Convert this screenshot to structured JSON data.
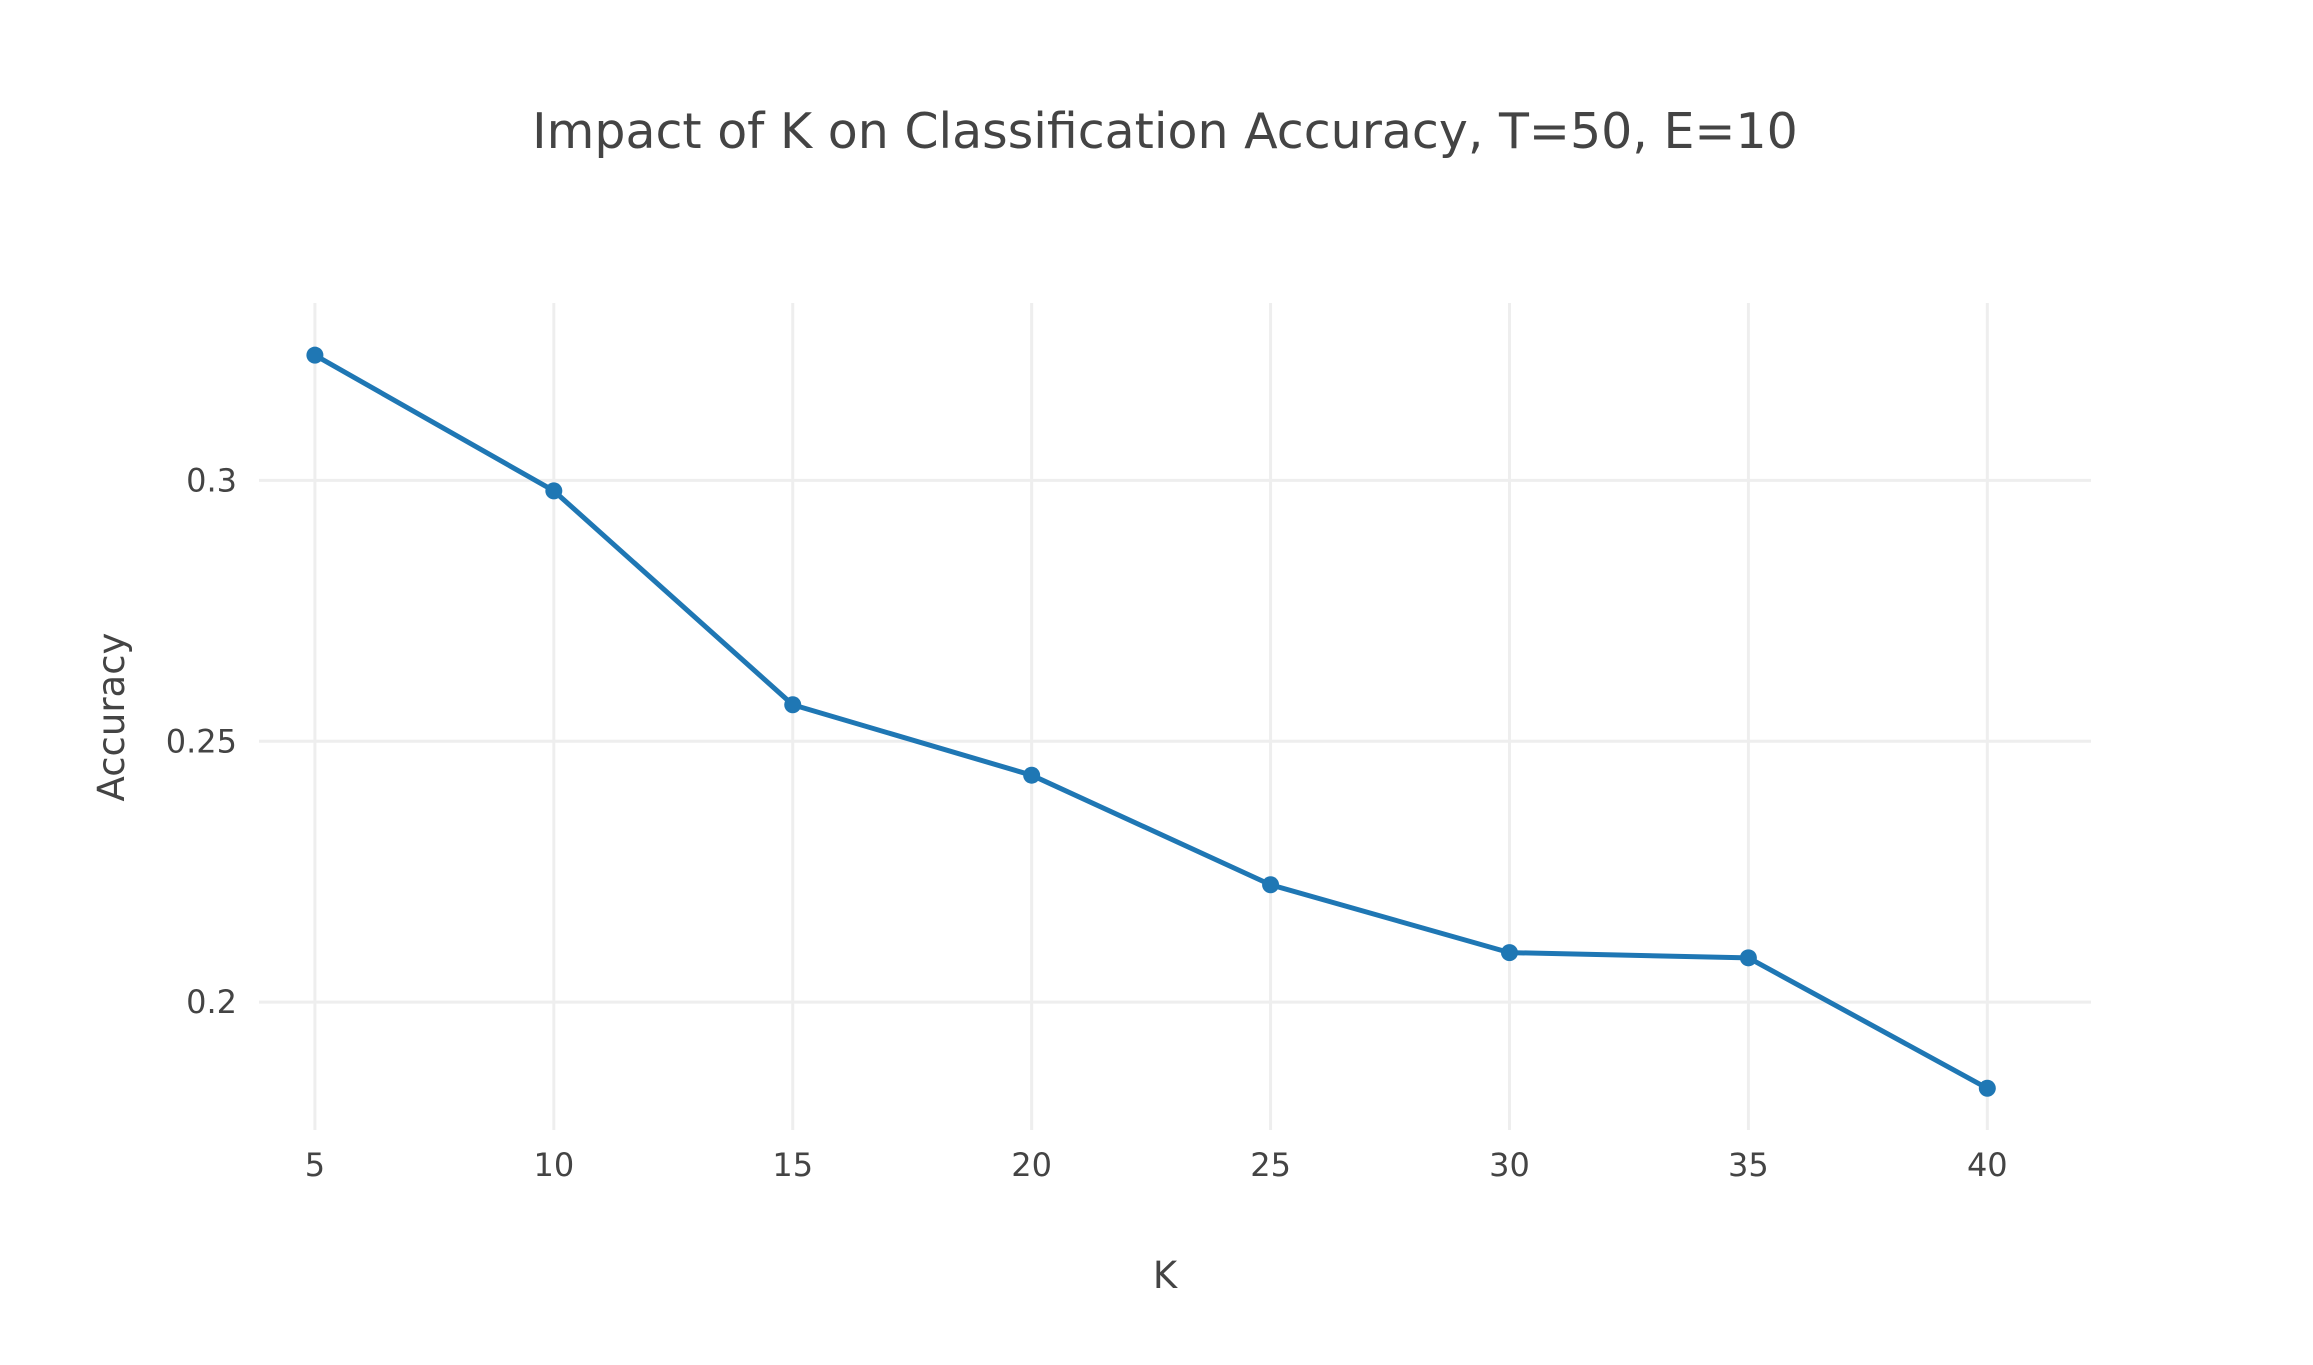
{
  "chart_data": {
    "type": "line",
    "title": "Impact of K on Classification Accuracy, T=50, E=10",
    "xlabel": "K",
    "ylabel": "Accuracy",
    "x": [
      5,
      10,
      15,
      20,
      25,
      30,
      35,
      40
    ],
    "series": [
      {
        "values": [
          0.324,
          0.298,
          0.257,
          0.2435,
          0.2225,
          0.2095,
          0.2085,
          0.1835
        ]
      }
    ],
    "x_ticks": [
      "5",
      "10",
      "15",
      "20",
      "25",
      "30",
      "35",
      "40"
    ],
    "y_ticks": [
      {
        "value": 0.2,
        "label": "0.2"
      },
      {
        "value": 0.25,
        "label": "0.25"
      },
      {
        "value": 0.3,
        "label": "0.3"
      }
    ],
    "xlim": [
      3.83,
      42.17
    ],
    "ylim": [
      0.1755,
      0.334
    ],
    "grid": true,
    "markers": true,
    "color": "#1f77b4"
  }
}
